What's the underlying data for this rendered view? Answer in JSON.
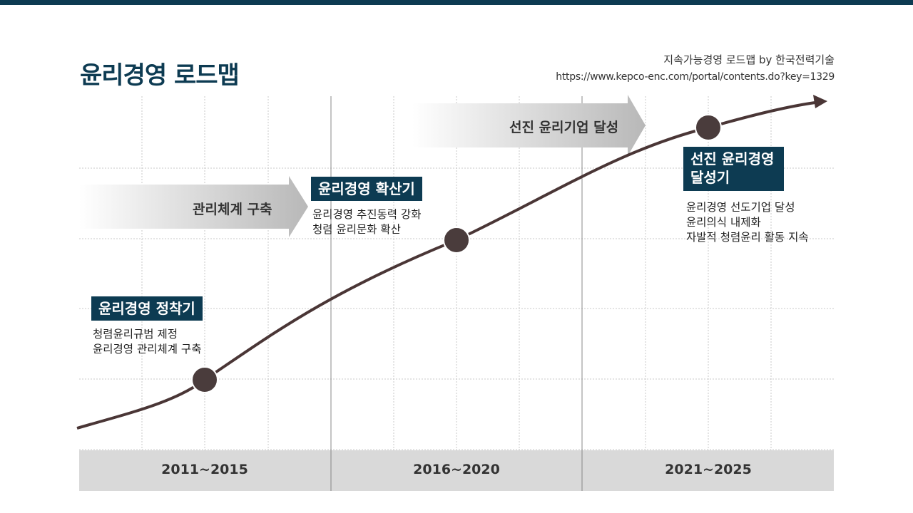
{
  "title": "윤리경영 로드맵",
  "source": {
    "line1": "지속가능경영 로드맵 by 한국전력기술",
    "line2": "https://www.kepco-enc.com/portal/contents.do?key=1329"
  },
  "arrows": [
    {
      "label": "관리체계 구축"
    },
    {
      "label": "선진 윤리기업 달성"
    }
  ],
  "stages": [
    {
      "label_lines": [
        "윤리경영 정착기"
      ],
      "desc": [
        "청렴윤리규범 제정",
        "윤리경영 관리체계 구축"
      ]
    },
    {
      "label_lines": [
        "윤리경영 확산기"
      ],
      "desc": [
        "윤리경영 추진동력 강화",
        "청렴 윤리문화 확산"
      ]
    },
    {
      "label_lines": [
        "선진 윤리경영",
        "달성기"
      ],
      "desc": [
        "윤리경영 선도기업 달성",
        "윤리의식 내제화",
        "자발적 청렴윤리 활동 지속"
      ]
    }
  ],
  "periods": [
    "2011~2015",
    "2016~2020",
    "2021~2025"
  ],
  "colors": {
    "primary": "#0d3b52",
    "curve": "#4a3636",
    "band": "#d9d9d9"
  }
}
